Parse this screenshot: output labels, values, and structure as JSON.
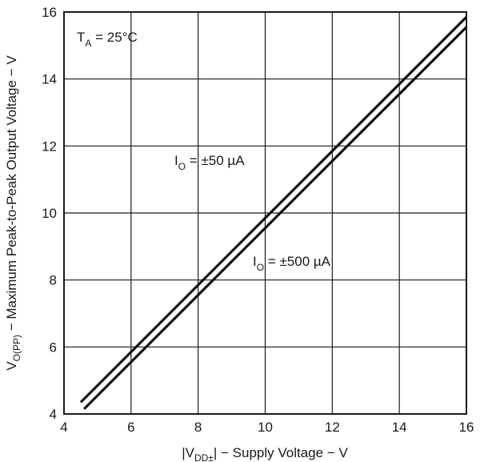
{
  "chart_data": {
    "type": "line",
    "xlabel": {
      "pre": "|V",
      "sub": "DD±",
      "post": "| − Supply Voltage − V"
    },
    "ylabel": {
      "pre": "V",
      "sub": "O(PP)",
      "post": " − Maximum Peak-to-Peak Output Voltage − V"
    },
    "xlim": [
      4,
      16
    ],
    "ylim": [
      4,
      16
    ],
    "xticks": [
      4,
      6,
      8,
      10,
      12,
      14,
      16
    ],
    "yticks": [
      4,
      6,
      8,
      10,
      12,
      14,
      16
    ],
    "grid": true,
    "annotations": [
      {
        "id": "ta",
        "pre": "T",
        "sub": "A",
        "post": " = 25°C"
      },
      {
        "id": "io50",
        "pre": "I",
        "sub": "O",
        "post": " = ±50 µA"
      },
      {
        "id": "io500",
        "pre": "I",
        "sub": "O",
        "post": " = ±500 µA"
      }
    ],
    "series": [
      {
        "name": "I_O = ±50 µA",
        "x": [
          4.5,
          16
        ],
        "y": [
          4.35,
          15.85
        ]
      },
      {
        "name": "I_O = ±500 µA",
        "x": [
          4.6,
          16
        ],
        "y": [
          4.15,
          15.55
        ]
      }
    ]
  }
}
